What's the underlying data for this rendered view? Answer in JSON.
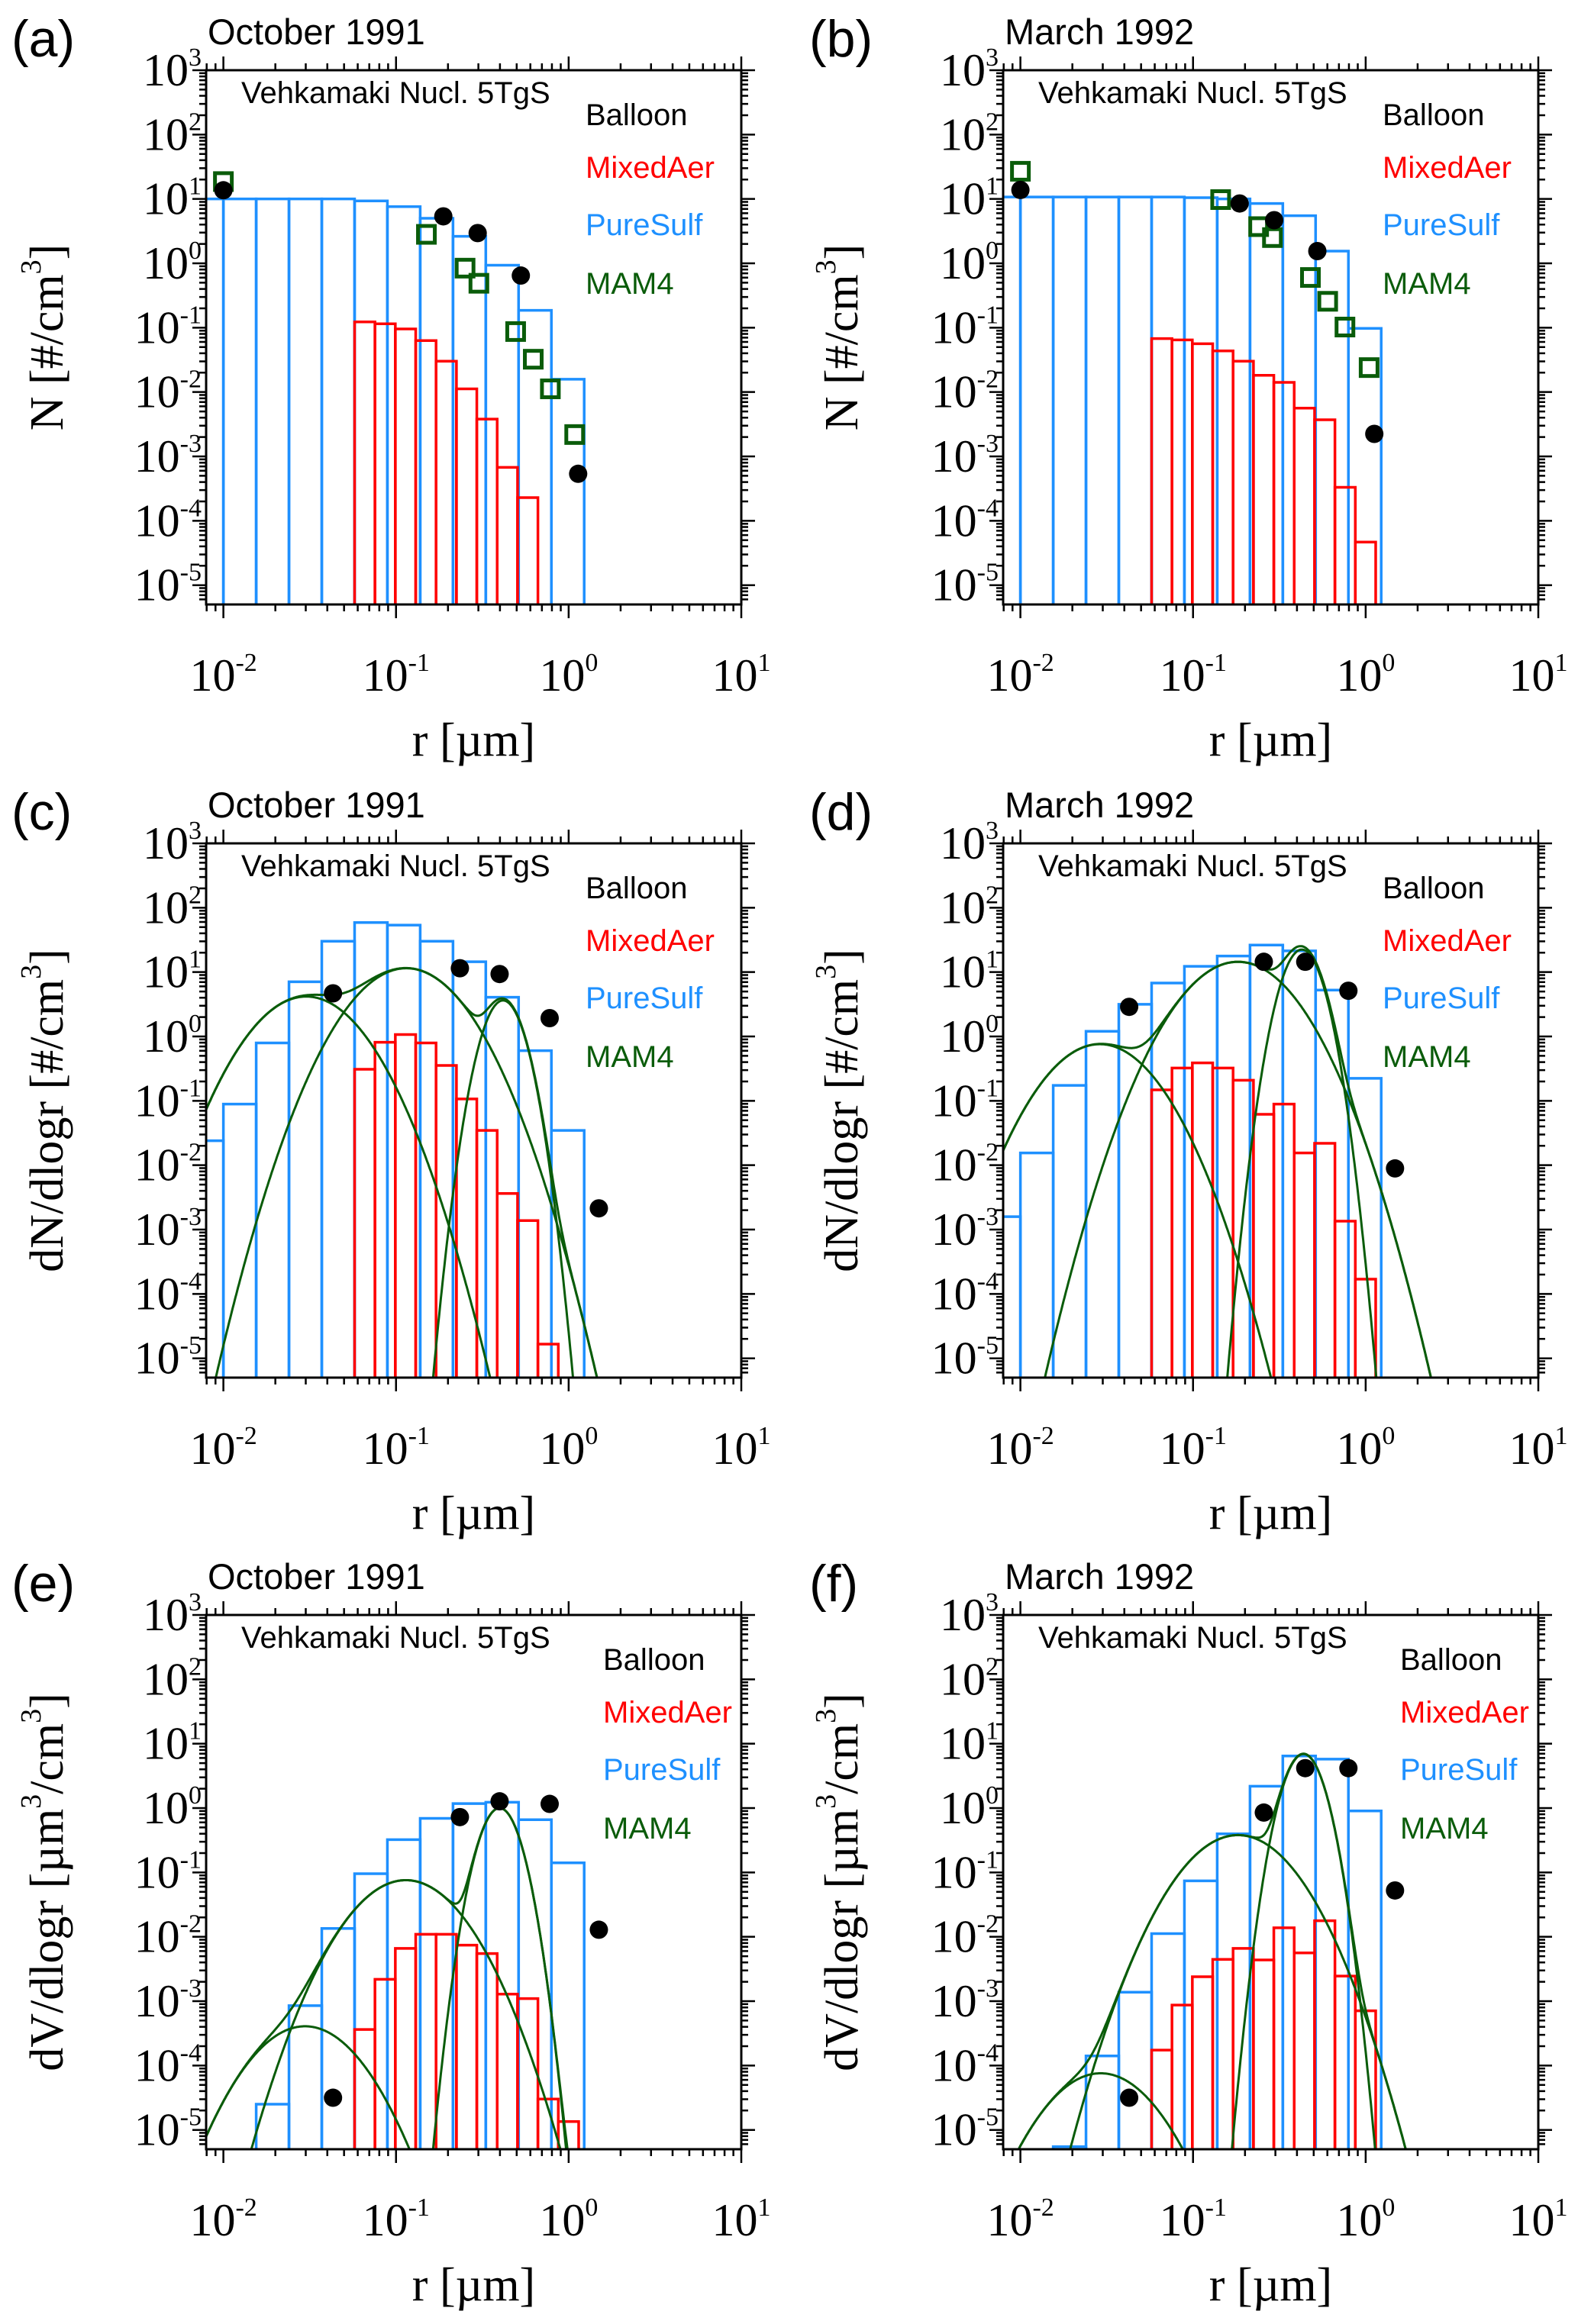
{
  "chart_data": [
    {
      "type": "bar",
      "panel_label": "(a)",
      "title": "October 1991",
      "annotation": "Vehkamaki Nucl. 5TgS",
      "ylabel": [
        {
          "t": "N [#/cm"
        },
        {
          "s": "3"
        },
        {
          "t": "]"
        }
      ],
      "xlabel": "r [µm]",
      "x_scale": "log10",
      "xlim_log10": [
        -2.1,
        1
      ],
      "ylim_log10": [
        -5.3,
        3
      ],
      "puresulf_log10_values": [
        1,
        1,
        1,
        1,
        1,
        0.97,
        0.88,
        0.7,
        0.42,
        -0.03,
        -0.73,
        -1.8
      ],
      "mixedaer_log10_values": [
        -0.91,
        -0.94,
        -1.02,
        -1.2,
        -1.52,
        -1.95,
        -2.42,
        -3.17,
        -3.64,
        -6,
        -6
      ],
      "balloon_points_log10": [
        [
          -2.0,
          1.135
        ],
        [
          -0.726,
          0.73
        ],
        [
          -0.527,
          0.47
        ],
        [
          -0.277,
          -0.19
        ],
        [
          0.055,
          -3.27
        ]
      ],
      "mam4_points_log10": [
        [
          -2.0,
          1.27
        ],
        [
          -0.824,
          0.45
        ],
        [
          -0.6,
          -0.075
        ],
        [
          -0.52,
          -0.31
        ],
        [
          -0.307,
          -1.06
        ],
        [
          -0.205,
          -1.49
        ],
        [
          -0.106,
          -1.95
        ],
        [
          0.035,
          -2.66
        ]
      ],
      "mam4_modes": []
    },
    {
      "type": "bar",
      "panel_label": "(b)",
      "title": "March 1992",
      "annotation": "Vehkamaki Nucl. 5TgS",
      "ylabel": [
        {
          "t": "N [#/cm"
        },
        {
          "s": "3"
        },
        {
          "t": "]"
        }
      ],
      "xlabel": "r [µm]",
      "x_scale": "log10",
      "xlim_log10": [
        -2.1,
        1
      ],
      "ylim_log10": [
        -5.3,
        3
      ],
      "puresulf_log10_values": [
        1.03,
        1.03,
        1.03,
        1.03,
        1.03,
        1.03,
        1.02,
        1.0,
        0.93,
        0.74,
        0.19,
        -1.01
      ],
      "mixedaer_log10_values": [
        -1.17,
        -1.19,
        -1.25,
        -1.36,
        -1.52,
        -1.74,
        -1.85,
        -2.25,
        -2.43,
        -3.48,
        -4.33
      ],
      "balloon_points_log10": [
        [
          -2.0,
          1.14
        ],
        [
          -0.73,
          0.93
        ],
        [
          -0.53,
          0.67
        ],
        [
          -0.28,
          0.19
        ],
        [
          0.05,
          -2.65
        ]
      ],
      "mam4_points_log10": [
        [
          -2.0,
          1.43
        ],
        [
          -0.84,
          0.99
        ],
        [
          -0.62,
          0.57
        ],
        [
          -0.54,
          0.4
        ],
        [
          -0.32,
          -0.22
        ],
        [
          -0.22,
          -0.59
        ],
        [
          -0.12,
          -0.99
        ],
        [
          0.02,
          -1.62
        ]
      ],
      "mam4_modes": []
    },
    {
      "type": "bar",
      "panel_label": "(c)",
      "title": "October 1991",
      "annotation": "Vehkamaki Nucl. 5TgS",
      "ylabel": [
        {
          "t": "dN/dlogr [#/cm"
        },
        {
          "s": "3"
        },
        {
          "t": "]"
        }
      ],
      "xlabel": "r [µm]",
      "x_scale": "log10",
      "xlim_log10": [
        -2.1,
        1
      ],
      "ylim_log10": [
        -5.3,
        3
      ],
      "puresulf_log10_values": [
        -1.62,
        -1.05,
        -0.1,
        0.85,
        1.48,
        1.77,
        1.73,
        1.48,
        1.16,
        0.61,
        -0.22,
        -1.46
      ],
      "mixedaer_log10_values": [
        -0.51,
        -0.09,
        0.03,
        -0.1,
        -0.45,
        -0.97,
        -1.46,
        -2.44,
        -2.86,
        -4.78,
        -6
      ],
      "balloon_points_log10": [
        [
          -1.365,
          0.67
        ],
        [
          -0.63,
          1.06
        ],
        [
          -0.4,
          0.97
        ],
        [
          -0.11,
          0.285
        ],
        [
          0.175,
          -2.67
        ]
      ],
      "mam4_points_log10": [],
      "mam4_modes": [
        {
          "mu_log10": -1.52,
          "sigma_log10": 0.204,
          "peak_log10": 0.62
        },
        {
          "mu_log10": -0.94,
          "sigma_log10": 0.204,
          "peak_log10": 1.06
        },
        {
          "mu_log10": -0.38,
          "sigma_log10": 0.078,
          "peak_log10": 0.56
        }
      ]
    },
    {
      "type": "bar",
      "panel_label": "(d)",
      "title": "March 1992",
      "annotation": "Vehkamaki Nucl. 5TgS",
      "ylabel": [
        {
          "t": "dN/dlogr [#/cm"
        },
        {
          "s": "3"
        },
        {
          "t": "]"
        }
      ],
      "xlabel": "r [µm]",
      "x_scale": "log10",
      "xlim_log10": [
        -2.1,
        1
      ],
      "ylim_log10": [
        -5.3,
        3
      ],
      "puresulf_log10_values": [
        -2.8,
        -1.81,
        -0.76,
        0.08,
        0.5,
        0.83,
        1.09,
        1.25,
        1.42,
        1.33,
        0.72,
        -0.65
      ],
      "mixedaer_log10_values": [
        -0.83,
        -0.49,
        -0.41,
        -0.49,
        -0.68,
        -1.21,
        -1.05,
        -1.81,
        -1.66,
        -2.87,
        -3.77
      ],
      "balloon_points_log10": [
        [
          -1.37,
          0.46
        ],
        [
          -0.59,
          1.16
        ],
        [
          -0.35,
          1.16
        ],
        [
          -0.1,
          0.71
        ],
        [
          0.17,
          -2.05
        ]
      ],
      "mam4_points_log10": [],
      "mam4_modes": [
        {
          "mu_log10": -1.54,
          "sigma_log10": 0.203,
          "peak_log10": -0.12
        },
        {
          "mu_log10": -0.74,
          "sigma_log10": 0.205,
          "peak_log10": 1.16
        },
        {
          "mu_log10": -0.37,
          "sigma_log10": 0.078,
          "peak_log10": 1.35
        }
      ]
    },
    {
      "type": "bar",
      "panel_label": "(e)",
      "title": "October 1991",
      "annotation": "Vehkamaki Nucl. 5TgS",
      "ylabel": [
        {
          "t": "dV/dlogr [µm"
        },
        {
          "s": "3"
        },
        {
          "t": "/cm"
        },
        {
          "s": "3"
        },
        {
          "t": "]"
        }
      ],
      "xlabel": "r [µm]",
      "x_scale": "log10",
      "xlim_log10": [
        -2.1,
        1
      ],
      "ylim_log10": [
        -5.3,
        3
      ],
      "puresulf_log10_values": [
        -6,
        -6,
        -4.6,
        -3.07,
        -1.87,
        -1.02,
        -0.49,
        -0.16,
        0.07,
        0.09,
        -0.18,
        -0.85
      ],
      "mixedaer_log10_values": [
        -3.44,
        -2.66,
        -2.18,
        -1.96,
        -1.96,
        -2.13,
        -2.26,
        -2.89,
        -2.96,
        -4.52,
        -4.87
      ],
      "balloon_points_log10": [
        [
          -1.365,
          -4.5
        ],
        [
          -0.63,
          -0.14
        ],
        [
          -0.4,
          0.105
        ],
        [
          -0.11,
          0.065
        ],
        [
          0.175,
          -1.89
        ]
      ],
      "mam4_points_log10": [],
      "mam4_modes": [
        {
          "mu_log10": -1.527,
          "sigma_log10": 0.204,
          "peak_log10": -3.39
        },
        {
          "mu_log10": -0.943,
          "sigma_log10": 0.204,
          "peak_log10": -1.12
        },
        {
          "mu_log10": -0.4,
          "sigma_log10": 0.078,
          "peak_log10": 0.0
        }
      ]
    },
    {
      "type": "bar",
      "panel_label": "(f)",
      "title": "March 1992",
      "annotation": "Vehkamaki Nucl. 5TgS",
      "ylabel": [
        {
          "t": "dV/dlogr [µm"
        },
        {
          "s": "3"
        },
        {
          "t": "/cm"
        },
        {
          "s": "3"
        },
        {
          "t": "]"
        }
      ],
      "xlabel": "r [µm]",
      "x_scale": "log10",
      "xlim_log10": [
        -2.1,
        1
      ],
      "ylim_log10": [
        -5.3,
        3
      ],
      "puresulf_log10_values": [
        -6,
        -6,
        -5.26,
        -3.85,
        -2.86,
        -1.95,
        -1.13,
        -0.4,
        0.34,
        0.81,
        0.76,
        -0.045
      ],
      "mixedaer_log10_values": [
        -3.76,
        -3.06,
        -2.62,
        -2.35,
        -2.18,
        -2.36,
        -1.86,
        -2.25,
        -1.75,
        -2.61,
        -3.15
      ],
      "balloon_points_log10": [
        [
          -1.37,
          -4.5
        ],
        [
          -0.59,
          -0.07
        ],
        [
          -0.35,
          0.62
        ],
        [
          -0.1,
          0.62
        ],
        [
          0.17,
          -1.28
        ]
      ],
      "mam4_points_log10": [],
      "mam4_modes": [
        {
          "mu_log10": -1.535,
          "sigma_log10": 0.204,
          "peak_log10": -4.12
        },
        {
          "mu_log10": -0.74,
          "sigma_log10": 0.205,
          "peak_log10": -0.42
        },
        {
          "mu_log10": -0.36,
          "sigma_log10": 0.078,
          "peak_log10": 0.84
        }
      ]
    }
  ],
  "shared": {
    "puresulf_log10_bin_edges": [
      -2.19,
      -2.0,
      -1.81,
      -1.62,
      -1.43,
      -1.24,
      -1.05,
      -0.86,
      -0.67,
      -0.48,
      -0.29,
      -0.1,
      0.09
    ],
    "mixedaer_log10_bin_edges": [
      -1.24,
      -1.122,
      -1.004,
      -0.886,
      -0.768,
      -0.65,
      -0.532,
      -0.414,
      -0.296,
      -0.178,
      -0.06,
      0.058
    ],
    "tick_base": "10",
    "ytick_exponents": [
      "3",
      "2",
      "1",
      "0",
      "-1",
      "-2",
      "-3",
      "-4",
      "-5"
    ],
    "xtick_exponents": [
      "-2",
      "-1",
      "0",
      "1"
    ],
    "legend": [
      {
        "label": "Balloon",
        "color": "#000000"
      },
      {
        "label": "MixedAer",
        "color": "#ff0000"
      },
      {
        "label": "PureSulf",
        "color": "#1e90ff"
      },
      {
        "label": "MAM4",
        "color": "#0a5c0a"
      }
    ]
  }
}
